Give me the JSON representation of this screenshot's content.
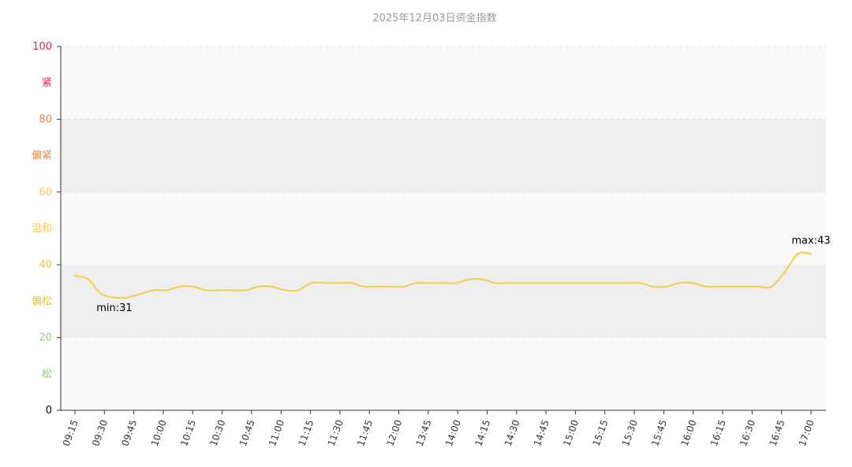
{
  "chart_data": {
    "type": "line",
    "title": "2025年12月03日资金指数",
    "ylim": [
      0,
      100
    ],
    "y_ticks": [
      {
        "value": 0,
        "label": "0",
        "color": "#000000"
      },
      {
        "value": 20,
        "label": "20",
        "color": "#91cc75"
      },
      {
        "value": 40,
        "label": "40",
        "color": "#e6c42b"
      },
      {
        "value": 60,
        "label": "60",
        "color": "#fac858"
      },
      {
        "value": 80,
        "label": "80",
        "color": "#f08445"
      },
      {
        "value": 100,
        "label": "100",
        "color": "#ee1e4e"
      }
    ],
    "bands": [
      {
        "from": 0,
        "to": 20,
        "label": "松",
        "color": "#91cc75",
        "fill": "#fafafa"
      },
      {
        "from": 20,
        "to": 40,
        "label": "偏松",
        "color": "#e6c42b",
        "fill": "#eeeeee"
      },
      {
        "from": 40,
        "to": 60,
        "label": "温和",
        "color": "#fac858",
        "fill": "#fafafa"
      },
      {
        "from": 60,
        "to": 80,
        "label": "偏紧",
        "color": "#f08445",
        "fill": "#eeeeee"
      },
      {
        "from": 80,
        "to": 100,
        "label": "紧",
        "color": "#ee1e4e",
        "fill": "#fafafa"
      }
    ],
    "x_tick_labels": [
      "09:15",
      "09:30",
      "09:45",
      "10:00",
      "10:15",
      "10:30",
      "10:45",
      "11:00",
      "11:15",
      "11:30",
      "11:45",
      "12:00",
      "13:45",
      "14:00",
      "14:15",
      "14:30",
      "14:45",
      "15:00",
      "15:15",
      "15:30",
      "15:45",
      "16:00",
      "16:15",
      "16:30",
      "16:45",
      "17:00"
    ],
    "series": [
      {
        "line_color": "#f0d154",
        "values": [
          37,
          36,
          32,
          31,
          31,
          32,
          33,
          33,
          34,
          34,
          33,
          33,
          33,
          33,
          34,
          34,
          33,
          33,
          35,
          35,
          35,
          35,
          34,
          34,
          34,
          34,
          35,
          35,
          35,
          35,
          36,
          36,
          35,
          35,
          35,
          35,
          35,
          35,
          35,
          35,
          35,
          35,
          35,
          35,
          34,
          34,
          35,
          35,
          34,
          34,
          34,
          34,
          34,
          34,
          38,
          43,
          43
        ]
      }
    ],
    "min_label": "min:31",
    "max_label": "max:43"
  }
}
